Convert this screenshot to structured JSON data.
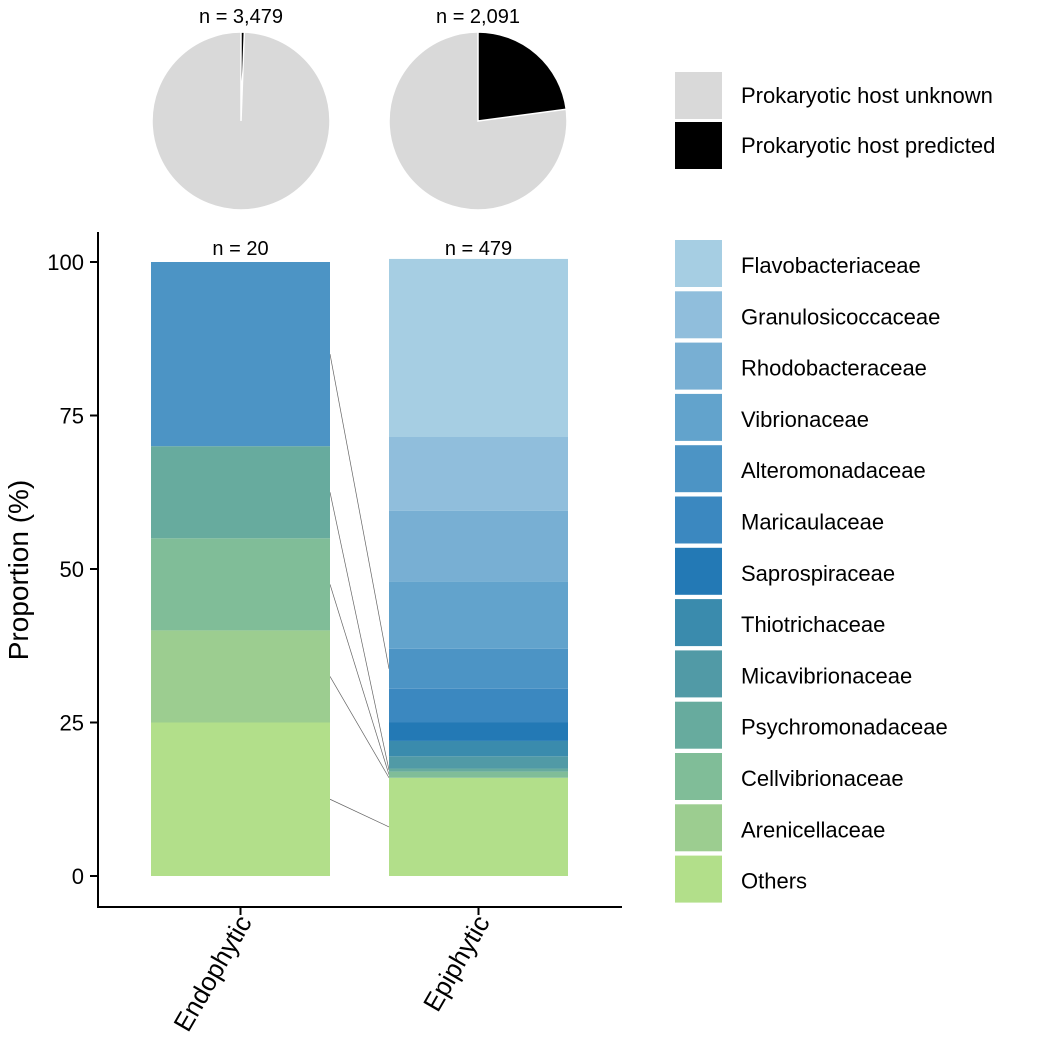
{
  "chart_data": [
    {
      "type": "pie",
      "title": "",
      "legend_position": "right",
      "slice_order": [
        "Prokaryotic host unknown",
        "Prokaryotic host predicted"
      ],
      "slice_colors": [
        "#d9d9d9",
        "#000000"
      ],
      "pies": [
        {
          "n_label": "n = 3,479",
          "values": [
            99.4,
            0.6
          ]
        },
        {
          "n_label": "n = 2,091",
          "values": [
            77.1,
            22.9
          ]
        }
      ],
      "legend": [
        {
          "label": "Prokaryotic host unknown",
          "color": "#d9d9d9"
        },
        {
          "label": "Prokaryotic host predicted",
          "color": "#000000"
        }
      ]
    },
    {
      "type": "bar",
      "stacked": true,
      "xlabel": "",
      "ylabel": "Proportion (%)",
      "ylim": [
        0,
        100
      ],
      "yticks": [
        "0",
        "25",
        "50",
        "75",
        "100"
      ],
      "grid": false,
      "legend_position": "right",
      "categories": [
        "Endophytic",
        "Epiphytic"
      ],
      "n_labels": [
        "n = 20",
        "n = 479"
      ],
      "series": [
        {
          "name": "Others",
          "color": "#b2df8a",
          "values": [
            25,
            16
          ]
        },
        {
          "name": "Arenicellaceae",
          "color": "#9ccd90",
          "values": [
            15,
            0
          ]
        },
        {
          "name": "Cellvibrionaceae",
          "color": "#80bd98",
          "values": [
            15,
            1
          ]
        },
        {
          "name": "Psychromonadaceae",
          "color": "#67ab9e",
          "values": [
            15,
            0.5
          ]
        },
        {
          "name": "Micavibrionaceae",
          "color": "#519aa6",
          "values": [
            0,
            2
          ]
        },
        {
          "name": "Thiotrichaceae",
          "color": "#3a8bad",
          "values": [
            0,
            2.5
          ]
        },
        {
          "name": "Saprospiraceae",
          "color": "#2379b5",
          "values": [
            0,
            3
          ]
        },
        {
          "name": "Maricaulaceae",
          "color": "#3b88c0",
          "values": [
            0,
            5.5
          ]
        },
        {
          "name": "Alteromonadaceae",
          "color": "#4c94c5",
          "values": [
            30,
            6.5
          ]
        },
        {
          "name": "Vibrionaceae",
          "color": "#62a3cc",
          "values": [
            0,
            11
          ]
        },
        {
          "name": "Rhodobacteraceae",
          "color": "#78afd3",
          "values": [
            0,
            11.5
          ]
        },
        {
          "name": "Granulosicoccaceae",
          "color": "#90bedc",
          "values": [
            0,
            12
          ]
        },
        {
          "name": "Flavobacteriaceae",
          "color": "#a6cee3",
          "values": [
            0,
            29
          ]
        }
      ],
      "legend_order": [
        "Flavobacteriaceae",
        "Granulosicoccaceae",
        "Rhodobacteraceae",
        "Vibrionaceae",
        "Alteromonadaceae",
        "Maricaulaceae",
        "Saprospiraceae",
        "Thiotrichaceae",
        "Micavibrionaceae",
        "Psychromonadaceae",
        "Cellvibrionaceae",
        "Arenicellaceae",
        "Others"
      ]
    }
  ]
}
